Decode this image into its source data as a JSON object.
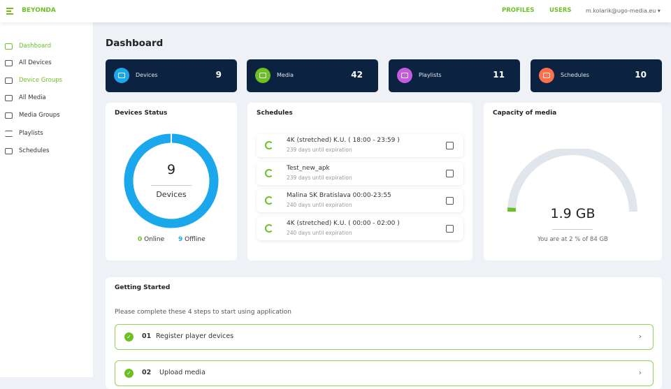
{
  "header": {
    "brand": "BEYONDA",
    "profiles": "PROFILES",
    "users": "USERS",
    "user_email": "m.kolarik@ugo-media.eu ▾"
  },
  "sidebar": {
    "items": [
      {
        "label": "Dashboard",
        "icon": "dashboard-icon",
        "active": true
      },
      {
        "label": "All Devices",
        "icon": "devices-icon"
      },
      {
        "label": "Device Groups",
        "icon": "folder-icon",
        "active": true
      },
      {
        "label": "All Media",
        "icon": "image-icon"
      },
      {
        "label": "Media Groups",
        "icon": "images-icon"
      },
      {
        "label": "Playlists",
        "icon": "playlist-icon"
      },
      {
        "label": "Schedules",
        "icon": "calendar-icon"
      }
    ]
  },
  "page_title": "Dashboard",
  "stats": [
    {
      "label": "Devices",
      "value": "9",
      "color": "#1aa7ec"
    },
    {
      "label": "Media",
      "value": "42",
      "color": "#6cc024"
    },
    {
      "label": "Playlists",
      "value": "11",
      "color": "#c55ce0"
    },
    {
      "label": "Schedules",
      "value": "10",
      "color": "#ff6f4a"
    }
  ],
  "devices_status": {
    "title": "Devices Status",
    "total": "9",
    "label": "Devices",
    "online_count": "0",
    "online_label": "Online",
    "offline_count": "9",
    "offline_label": "Offline",
    "online_color": "#6cc024",
    "offline_color": "#1aa7ec"
  },
  "schedules": {
    "title": "Schedules",
    "items": [
      {
        "name": "4K (stretched) K.U. ( 18:00 - 23:59 )",
        "expiry": "239 days until expiration"
      },
      {
        "name": "Test_new_apk",
        "expiry": "239 days until expiration"
      },
      {
        "name": "Malina SK Bratislava 00:00-23:55",
        "expiry": "240 days until expiration"
      },
      {
        "name": "4K (stretched) K.U. ( 00:00 - 02:00 )",
        "expiry": "240 days until expiration"
      }
    ]
  },
  "capacity": {
    "title": "Capacity of media",
    "used": "1.9 GB",
    "percent": 2,
    "note": "You are at 2 % of 84 GB"
  },
  "getting_started": {
    "title": "Getting Started",
    "subtitle": "Please complete these 4 steps to start using application",
    "steps": [
      {
        "num": "01",
        "label": "Register player devices",
        "done": true
      },
      {
        "num": "02",
        "label": "Upload media",
        "done": true
      }
    ]
  }
}
